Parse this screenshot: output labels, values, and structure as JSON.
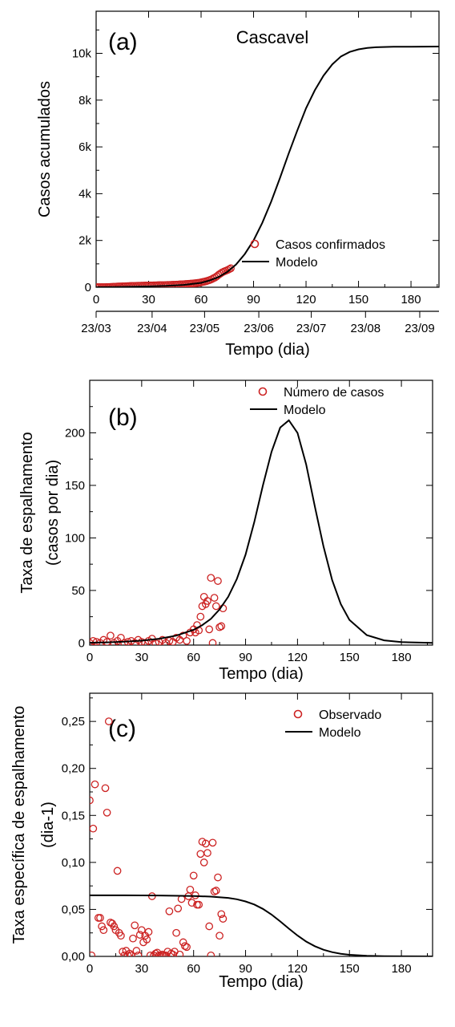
{
  "chart_data": [
    {
      "type": "scatter",
      "panel_label": "(a)",
      "title": "Cascavel",
      "xlabel": "Tempo (dia)",
      "ylabel": "Casos acumulados",
      "xlim": [
        0,
        196
      ],
      "ylim": [
        0,
        11800
      ],
      "x_ticks": [
        0,
        30,
        60,
        90,
        120,
        150,
        180
      ],
      "x_tick_labels": [
        "0",
        "30",
        "60",
        "90",
        "120",
        "150",
        "180"
      ],
      "y_ticks": [
        0,
        2000,
        4000,
        6000,
        8000,
        10000
      ],
      "y_tick_labels": [
        "0",
        "2k",
        "4k",
        "6k",
        "8k",
        "10k"
      ],
      "date_ticks": [
        0,
        32,
        62,
        93,
        123,
        154,
        185
      ],
      "date_tick_labels": [
        "23/03",
        "23/04",
        "23/05",
        "23/06",
        "23/07",
        "23/08",
        "23/09"
      ],
      "legend": {
        "position": "bottom-right",
        "entries": [
          "Casos confirmados",
          "Modelo"
        ]
      },
      "series": [
        {
          "name": "Casos confirmados",
          "kind": "scatter",
          "color": "#cc2222",
          "x": [
            0,
            1,
            2,
            3,
            4,
            5,
            6,
            7,
            8,
            9,
            10,
            11,
            12,
            13,
            14,
            15,
            16,
            17,
            18,
            19,
            20,
            21,
            22,
            23,
            24,
            25,
            26,
            27,
            28,
            29,
            30,
            31,
            32,
            33,
            34,
            35,
            36,
            37,
            38,
            39,
            40,
            41,
            42,
            43,
            44,
            45,
            46,
            47,
            48,
            49,
            50,
            51,
            52,
            53,
            54,
            55,
            56,
            57,
            58,
            59,
            60,
            61,
            62,
            63,
            64,
            65,
            66,
            67,
            68,
            69,
            70,
            71,
            72,
            73,
            74,
            75,
            76,
            77
          ],
          "y": [
            1,
            2,
            3,
            4,
            6,
            8,
            10,
            12,
            14,
            17,
            20,
            25,
            30,
            33,
            36,
            39,
            42,
            45,
            48,
            51,
            54,
            57,
            60,
            62,
            64,
            66,
            68,
            70,
            72,
            74,
            76,
            78,
            80,
            82,
            84,
            86,
            88,
            90,
            92,
            94,
            96,
            98,
            101,
            104,
            107,
            110,
            114,
            118,
            122,
            126,
            131,
            136,
            141,
            147,
            153,
            160,
            168,
            176,
            185,
            195,
            210,
            225,
            240,
            260,
            285,
            310,
            340,
            380,
            420,
            470,
            530,
            580,
            630,
            670,
            700,
            730,
            770,
            810
          ]
        },
        {
          "name": "Modelo",
          "kind": "line",
          "color": "#000000",
          "x": [
            0,
            10,
            20,
            30,
            40,
            50,
            60,
            65,
            70,
            75,
            80,
            85,
            90,
            95,
            100,
            105,
            110,
            115,
            120,
            125,
            130,
            135,
            140,
            145,
            150,
            155,
            160,
            170,
            180,
            196
          ],
          "y": [
            5,
            10,
            20,
            35,
            60,
            100,
            190,
            290,
            440,
            660,
            970,
            1420,
            2000,
            2750,
            3650,
            4650,
            5700,
            6700,
            7650,
            8420,
            9050,
            9530,
            9870,
            10060,
            10170,
            10230,
            10260,
            10280,
            10285,
            10290
          ]
        }
      ]
    },
    {
      "type": "scatter",
      "panel_label": "(b)",
      "xlabel": "Tempo (dia)",
      "ylabel": "Taxa de espalhamento",
      "ylabel2": "(casos por dia)",
      "xlim": [
        0,
        198
      ],
      "ylim": [
        -2,
        250
      ],
      "x_ticks": [
        0,
        30,
        60,
        90,
        120,
        150,
        180
      ],
      "x_tick_labels": [
        "0",
        "30",
        "60",
        "90",
        "120",
        "150",
        "180"
      ],
      "y_ticks": [
        0,
        50,
        100,
        150,
        200
      ],
      "y_tick_labels": [
        "0",
        "50",
        "100",
        "150",
        "200"
      ],
      "legend": {
        "position": "top-right",
        "entries": [
          "Número de casos",
          "Modelo"
        ]
      },
      "series": [
        {
          "name": "Número de casos",
          "kind": "scatter",
          "color": "#cc2222",
          "x": [
            0,
            2,
            4,
            6,
            8,
            10,
            12,
            14,
            16,
            18,
            20,
            22,
            24,
            26,
            28,
            30,
            32,
            34,
            36,
            38,
            40,
            42,
            44,
            46,
            48,
            50,
            52,
            54,
            56,
            58,
            60,
            61,
            62,
            63,
            64,
            65,
            66,
            67,
            68,
            69,
            70,
            71,
            72,
            73,
            74,
            75,
            76,
            77
          ],
          "y": [
            0,
            2,
            1,
            0,
            3,
            1,
            7,
            0,
            2,
            5,
            0,
            1,
            2,
            0,
            3,
            1,
            0,
            2,
            4,
            0,
            1,
            3,
            0,
            2,
            1,
            5,
            3,
            7,
            2,
            10,
            13,
            10,
            17,
            12,
            25,
            35,
            44,
            37,
            40,
            13,
            62,
            0,
            43,
            35,
            59,
            15,
            16,
            33
          ]
        },
        {
          "name": "Modelo",
          "kind": "line",
          "color": "#000000",
          "x": [
            0,
            10,
            20,
            30,
            40,
            50,
            60,
            65,
            70,
            75,
            80,
            85,
            90,
            95,
            100,
            105,
            110,
            115,
            120,
            125,
            130,
            135,
            140,
            145,
            150,
            160,
            170,
            180,
            198
          ],
          "y": [
            0.3,
            0.6,
            1.2,
            2.2,
            4,
            7,
            12.5,
            17,
            23,
            32,
            44,
            61,
            84,
            115,
            150,
            182,
            205,
            212,
            200,
            170,
            130,
            92,
            60,
            37,
            22,
            7.5,
            2.5,
            0.8,
            0.1
          ]
        }
      ]
    },
    {
      "type": "scatter",
      "panel_label": "(c)",
      "xlabel": "Tempo (dia)",
      "ylabel": "Taxa específica de espalhamento",
      "ylabel2": "(dia-1)",
      "xlim": [
        0,
        198
      ],
      "ylim": [
        0,
        0.28
      ],
      "x_ticks": [
        0,
        30,
        60,
        90,
        120,
        150,
        180
      ],
      "x_tick_labels": [
        "0",
        "30",
        "60",
        "90",
        "120",
        "150",
        "180"
      ],
      "y_ticks": [
        0,
        0.05,
        0.1,
        0.15,
        0.2,
        0.25
      ],
      "y_tick_labels": [
        "0,00",
        "0,05",
        "0,10",
        "0,15",
        "0,20",
        "0,25"
      ],
      "legend": {
        "position": "top-right",
        "entries": [
          "Observado",
          "Modelo"
        ]
      },
      "series": [
        {
          "name": "Observado",
          "kind": "scatter",
          "color": "#cc2222",
          "x": [
            0,
            1,
            2,
            3,
            5,
            6,
            7,
            8,
            9,
            10,
            11,
            12,
            13,
            14,
            15,
            16,
            17,
            18,
            19,
            20,
            21,
            22,
            23,
            24,
            25,
            26,
            27,
            28,
            29,
            30,
            31,
            32,
            33,
            34,
            35,
            36,
            37,
            38,
            39,
            40,
            41,
            42,
            43,
            44,
            45,
            46,
            47,
            48,
            49,
            50,
            51,
            52,
            53,
            54,
            55,
            56,
            57,
            58,
            59,
            60,
            61,
            62,
            63,
            64,
            65,
            66,
            67,
            68,
            69,
            70,
            71,
            72,
            73,
            74,
            75,
            76,
            77
          ],
          "y": [
            0.166,
            0.001,
            0.136,
            0.183,
            0.041,
            0.041,
            0.032,
            0.028,
            0.179,
            0.153,
            0.25,
            0.036,
            0.035,
            0.032,
            0.028,
            0.091,
            0.025,
            0.022,
            0.005,
            0.001,
            0.006,
            0.001,
            0.003,
            0.001,
            0.019,
            0.033,
            0.006,
            0.001,
            0.023,
            0.028,
            0.015,
            0.022,
            0.018,
            0.026,
            0.001,
            0.064,
            0.001,
            0.003,
            0.004,
            0.001,
            0.001,
            0.002,
            0.001,
            0.001,
            0.005,
            0.048,
            0.003,
            0.002,
            0.005,
            0.025,
            0.051,
            0.002,
            0.061,
            0.015,
            0.011,
            0.01,
            0.064,
            0.071,
            0.057,
            0.086,
            0.065,
            0.055,
            0.055,
            0.109,
            0.122,
            0.1,
            0.12,
            0.11,
            0.032,
            0.001,
            0.121,
            0.069,
            0.07,
            0.084,
            0.022,
            0.045,
            0.04
          ]
        },
        {
          "name": "Modelo",
          "kind": "line",
          "color": "#000000",
          "x": [
            0,
            20,
            40,
            60,
            70,
            80,
            85,
            90,
            95,
            100,
            105,
            110,
            115,
            120,
            125,
            130,
            135,
            140,
            145,
            150,
            160,
            170,
            180,
            198
          ],
          "y": [
            0.065,
            0.065,
            0.0648,
            0.0643,
            0.0636,
            0.0622,
            0.0608,
            0.0585,
            0.0552,
            0.0505,
            0.0445,
            0.0372,
            0.0295,
            0.0222,
            0.0158,
            0.0108,
            0.0071,
            0.0045,
            0.0028,
            0.0017,
            0.0006,
            0.0002,
            0.0001,
            0.0
          ]
        }
      ]
    }
  ]
}
